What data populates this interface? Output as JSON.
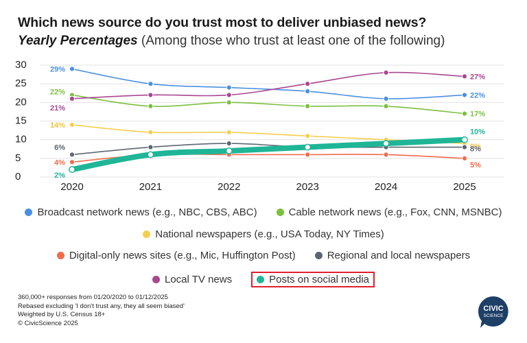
{
  "header": {
    "title": "Which news source do you trust most to deliver unbiased news?",
    "subtitle_em": "Yearly Percentages",
    "subtitle_rest": "(Among those who trust at least one of the following)"
  },
  "chart_data": {
    "type": "line",
    "x": [
      "2020",
      "2021",
      "2022",
      "2023",
      "2024",
      "2025"
    ],
    "ylim": [
      0,
      30
    ],
    "yticks": [
      0,
      5,
      10,
      15,
      20,
      25,
      30
    ],
    "grid": true,
    "legend_position": "bottom",
    "series": [
      {
        "name": "Broadcast network news (e.g., NBC, CBS, ABC)",
        "color": "#4a90e2",
        "values": [
          29,
          25,
          24,
          23,
          21,
          22
        ],
        "start_label": "29%",
        "end_label": "22%"
      },
      {
        "name": "Cable network news (e.g., Fox, CNN, MSNBC)",
        "color": "#7cbf3f",
        "values": [
          22,
          19,
          20,
          19,
          19,
          17
        ],
        "start_label": "22%",
        "end_label": "17%"
      },
      {
        "name": "National newspapers (e.g., USA Today, NY Times)",
        "color": "#f5cf4c",
        "values": [
          14,
          12,
          12,
          11,
          10,
          9
        ],
        "start_label": "14%",
        "end_label": "9%"
      },
      {
        "name": "Digital-only news sites (e.g., Mic, Huffington Post)",
        "color": "#f26b4b",
        "values": [
          4,
          6,
          6,
          6,
          6,
          5
        ],
        "start_label": "4%",
        "end_label": "5%"
      },
      {
        "name": "Regional and local newspapers",
        "color": "#5d6670",
        "values": [
          6,
          8,
          9,
          8,
          8,
          8
        ],
        "start_label": "6%",
        "end_label": "8%"
      },
      {
        "name": "Local TV news",
        "color": "#a8478f",
        "values": [
          21,
          22,
          22,
          25,
          28,
          27
        ],
        "start_label": "21%",
        "end_label": "27%"
      },
      {
        "name": "Posts on social media",
        "color": "#1fb597",
        "values": [
          2,
          6,
          7,
          8,
          9,
          10
        ],
        "start_label": "2%",
        "end_label": "10%",
        "highlighted": true
      }
    ]
  },
  "legend": {
    "rows": [
      [
        {
          "label": "Broadcast network news (e.g., NBC, CBS, ABC)",
          "color": "#4a90e2"
        },
        {
          "label": "Cable network news (e.g., Fox, CNN, MSNBC)",
          "color": "#7cbf3f"
        }
      ],
      [
        {
          "label": "National newspapers (e.g., USA Today, NY Times)",
          "color": "#f5cf4c"
        }
      ],
      [
        {
          "label": "Digital-only news sites (e.g., Mic, Huffington Post)",
          "color": "#f26b4b"
        },
        {
          "label": "Regional and local newspapers",
          "color": "#5d6670"
        }
      ],
      [
        {
          "label": "Local TV news",
          "color": "#a8478f"
        },
        {
          "label": "Posts on social media",
          "color": "#1fb597",
          "highlighted": true
        }
      ]
    ]
  },
  "footnote": {
    "line1": "360,000+ responses from 01/20/2020 to 01/12/2025",
    "line2": "Rebased excluding 'I don't trust any, they all seem biased'",
    "line3": "Weighted by U.S. Census 18+",
    "line4": "© CivicScience 2025"
  },
  "logo": {
    "line1": "CIVIC",
    "line2": "SCIENCE",
    "color": "#1e3f66"
  }
}
